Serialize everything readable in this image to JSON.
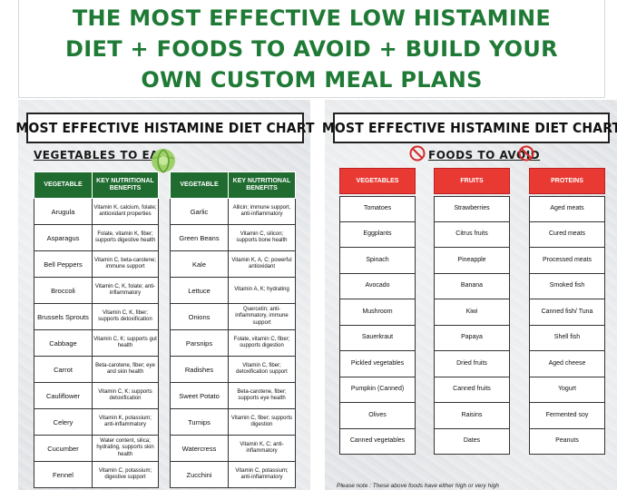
{
  "banner": {
    "line1": "THE MOST EFFECTIVE LOW HISTAMINE",
    "line2": "DIET + FOODS TO AVOID + BUILD YOUR",
    "line3": "OWN CUSTOM MEAL PLANS"
  },
  "left_chart": {
    "title": "MOST EFFECTIVE HISTAMINE DIET CHART",
    "section_label": "VEGETABLES TO EAT",
    "headers": {
      "vegetable": "VEGETABLE",
      "benefits": "KEY NUTRITIONAL BENEFITS"
    },
    "table1": [
      {
        "name": "Arugula",
        "benefits": "Vitamin K, calcium, folate; antioxidant properties"
      },
      {
        "name": "Asparagus",
        "benefits": "Folate, vitamin K, fiber; supports digestive health"
      },
      {
        "name": "Bell Peppers",
        "benefits": "Vitamin C, beta-carotene; immune support"
      },
      {
        "name": "Broccoli",
        "benefits": "Vitamin C, K, folate; anti-inflammatory"
      },
      {
        "name": "Brussels Sprouts",
        "benefits": "Vitamin C, K, fiber; supports detoxification"
      },
      {
        "name": "Cabbage",
        "benefits": "Vitamin C, K; supports gut health"
      },
      {
        "name": "Carrot",
        "benefits": "Beta-carotene, fiber; eye and skin health"
      },
      {
        "name": "Cauliflower",
        "benefits": "Vitamin C, K; supports detoxification"
      },
      {
        "name": "Celery",
        "benefits": "Vitamin K, potassium; anti-inflammatory"
      },
      {
        "name": "Cucumber",
        "benefits": "Water content, silica; hydrating, supports skin health"
      },
      {
        "name": "Fennel",
        "benefits": "Vitamin C, potassium; digestive support"
      }
    ],
    "table2": [
      {
        "name": "Garlic",
        "benefits": "Allicin; immune support, anti-inflammatory"
      },
      {
        "name": "Green Beans",
        "benefits": "Vitamin C, silicon; supports bone health"
      },
      {
        "name": "Kale",
        "benefits": "Vitamin K, A, C; powerful antioxidant"
      },
      {
        "name": "Lettuce",
        "benefits": "Vitamin A, K; hydrating"
      },
      {
        "name": "Onions",
        "benefits": "Quercetin; anti-inflammatory, immune support"
      },
      {
        "name": "Parsnips",
        "benefits": "Folate, vitamin C, fiber; supports digestion"
      },
      {
        "name": "Radishes",
        "benefits": "Vitamin C, fiber; detoxification support"
      },
      {
        "name": "Sweet Potato",
        "benefits": "Beta-carotene, fiber; supports eye health"
      },
      {
        "name": "Turnips",
        "benefits": "Vitamin C, fiber; supports digestion"
      },
      {
        "name": "Watercress",
        "benefits": "Vitamin K, C; anti-inflammatory"
      },
      {
        "name": "Zucchini",
        "benefits": "Vitamin C, potassium; anti-inflammatory"
      }
    ]
  },
  "right_chart": {
    "title": "MOST EFFECTIVE HISTAMINE DIET CHART",
    "section_label": "FOODS TO AVOID",
    "columns": [
      {
        "header": "VEGETABLES",
        "items": [
          "Tomatoes",
          "Eggplants",
          "Spinach",
          "Avocado",
          "Mushroom",
          "Sauerkraut",
          "Pickled vegetables",
          "Pumpkin (Canned)",
          "Olives",
          "Canned vegetables"
        ]
      },
      {
        "header": "FRUITS",
        "items": [
          "Strawberries",
          "Citrus fruits",
          "Pineapple",
          "Banana",
          "Kiwi",
          "Papaya",
          "Dried fruits",
          "Canned fruits",
          "Raisins",
          "Dates"
        ]
      },
      {
        "header": "PROTEINS",
        "items": [
          "Aged meats",
          "Cured meats",
          "Processed meats",
          "Smoked fish",
          "Canned fish/ Tuna",
          "Shell fish",
          "Aged cheese",
          "Yogurt",
          "Fermented soy",
          "Peanuts"
        ]
      }
    ],
    "note": "Please note : These above foods have either high or very high"
  },
  "colors": {
    "green": "#1f7a36",
    "table_header_green": "#1f6b30",
    "avoid_red": "#e83a33"
  },
  "icons": {
    "vegetables": "cabbage-icon",
    "avoid": "no-sign-icon"
  }
}
